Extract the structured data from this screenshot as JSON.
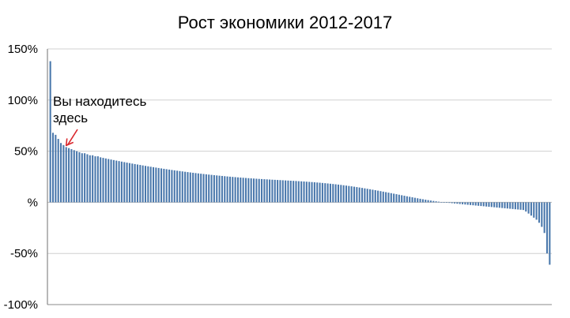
{
  "chart_data": {
    "type": "bar",
    "title": "Рост экономики 2012-2017",
    "xlabel": "",
    "ylabel": "",
    "ylim": [
      -100,
      150
    ],
    "y_ticks": [
      {
        "value": 150,
        "label": "150%"
      },
      {
        "value": 100,
        "label": "100%"
      },
      {
        "value": 50,
        "label": "50%"
      },
      {
        "value": 0,
        "label": "%"
      },
      {
        "value": -50,
        "label": "-50%"
      },
      {
        "value": -100,
        "label": "-100%"
      }
    ],
    "grid": true,
    "legend": "none",
    "bar_count": 190,
    "values": [
      138,
      68,
      66,
      62,
      58,
      56,
      54,
      53,
      52,
      51,
      50,
      49,
      48,
      48,
      47,
      46,
      46,
      45,
      45,
      44,
      43.45,
      42.91,
      42.37,
      41.84,
      41.32,
      40.81,
      40.31,
      39.81,
      39.32,
      38.83,
      38.36,
      37.89,
      37.42,
      36.97,
      36.52,
      36.07,
      35.64,
      35.21,
      34.79,
      34.37,
      33.96,
      33.56,
      33.16,
      32.77,
      32.39,
      32.01,
      31.64,
      31.28,
      30.92,
      30.57,
      30.22,
      29.88,
      29.55,
      29.22,
      28.9,
      28.59,
      28.28,
      27.98,
      27.69,
      27.4,
      27.11,
      26.84,
      26.57,
      26.3,
      26.05,
      25.8,
      25.55,
      25.31,
      25.08,
      24.85,
      24.63,
      24.42,
      24.21,
      24.01,
      23.81,
      23.62,
      23.43,
      23.25,
      23.08,
      22.91,
      22.75,
      22.59,
      22.44,
      22.29,
      22.14,
      22.0,
      21.86,
      21.72,
      21.58,
      21.43,
      21.29,
      21.14,
      20.99,
      20.84,
      20.68,
      20.52,
      20.35,
      20.17,
      19.99,
      19.8,
      19.6,
      19.39,
      19.17,
      18.94,
      18.7,
      18.45,
      18.19,
      17.91,
      17.63,
      17.33,
      17.02,
      16.69,
      16.36,
      16.01,
      15.65,
      15.27,
      14.89,
      14.49,
      14.08,
      13.66,
      13.23,
      12.79,
      12.34,
      11.88,
      11.41,
      10.93,
      10.45,
      9.96,
      9.46,
      8.96,
      8.45,
      7.95,
      7.44,
      6.93,
      6.42,
      5.91,
      5.41,
      4.92,
      4.43,
      3.95,
      3.48,
      3.02,
      2.58,
      2.15,
      1.73,
      1.34,
      0.96,
      0.61,
      0.28,
      -0.02,
      -0.31,
      -0.59,
      -0.86,
      -1.13,
      -1.39,
      -1.65,
      -1.9,
      -2.15,
      -2.4,
      -2.64,
      -2.89,
      -3.13,
      -3.38,
      -3.62,
      -3.86,
      -4.11,
      -4.35,
      -4.59,
      -4.83,
      -5.08,
      -5.32,
      -5.56,
      -5.8,
      -6.05,
      -6.29,
      -6.53,
      -6.78,
      -7.02,
      -7.27,
      -7.51,
      -9,
      -11,
      -13,
      -15,
      -17,
      -20,
      -24,
      -30,
      -50,
      -61
    ],
    "annotation": {
      "text_line1": "Вы находитесь",
      "text_line2": "здесь",
      "target_index": 6
    },
    "colors": {
      "bar": "#4a78ac",
      "grid": "#d0d0d0",
      "axis": "#888888",
      "zero_line": "#b8b8b8",
      "arrow": "#d9262c",
      "text": "#000000"
    }
  }
}
